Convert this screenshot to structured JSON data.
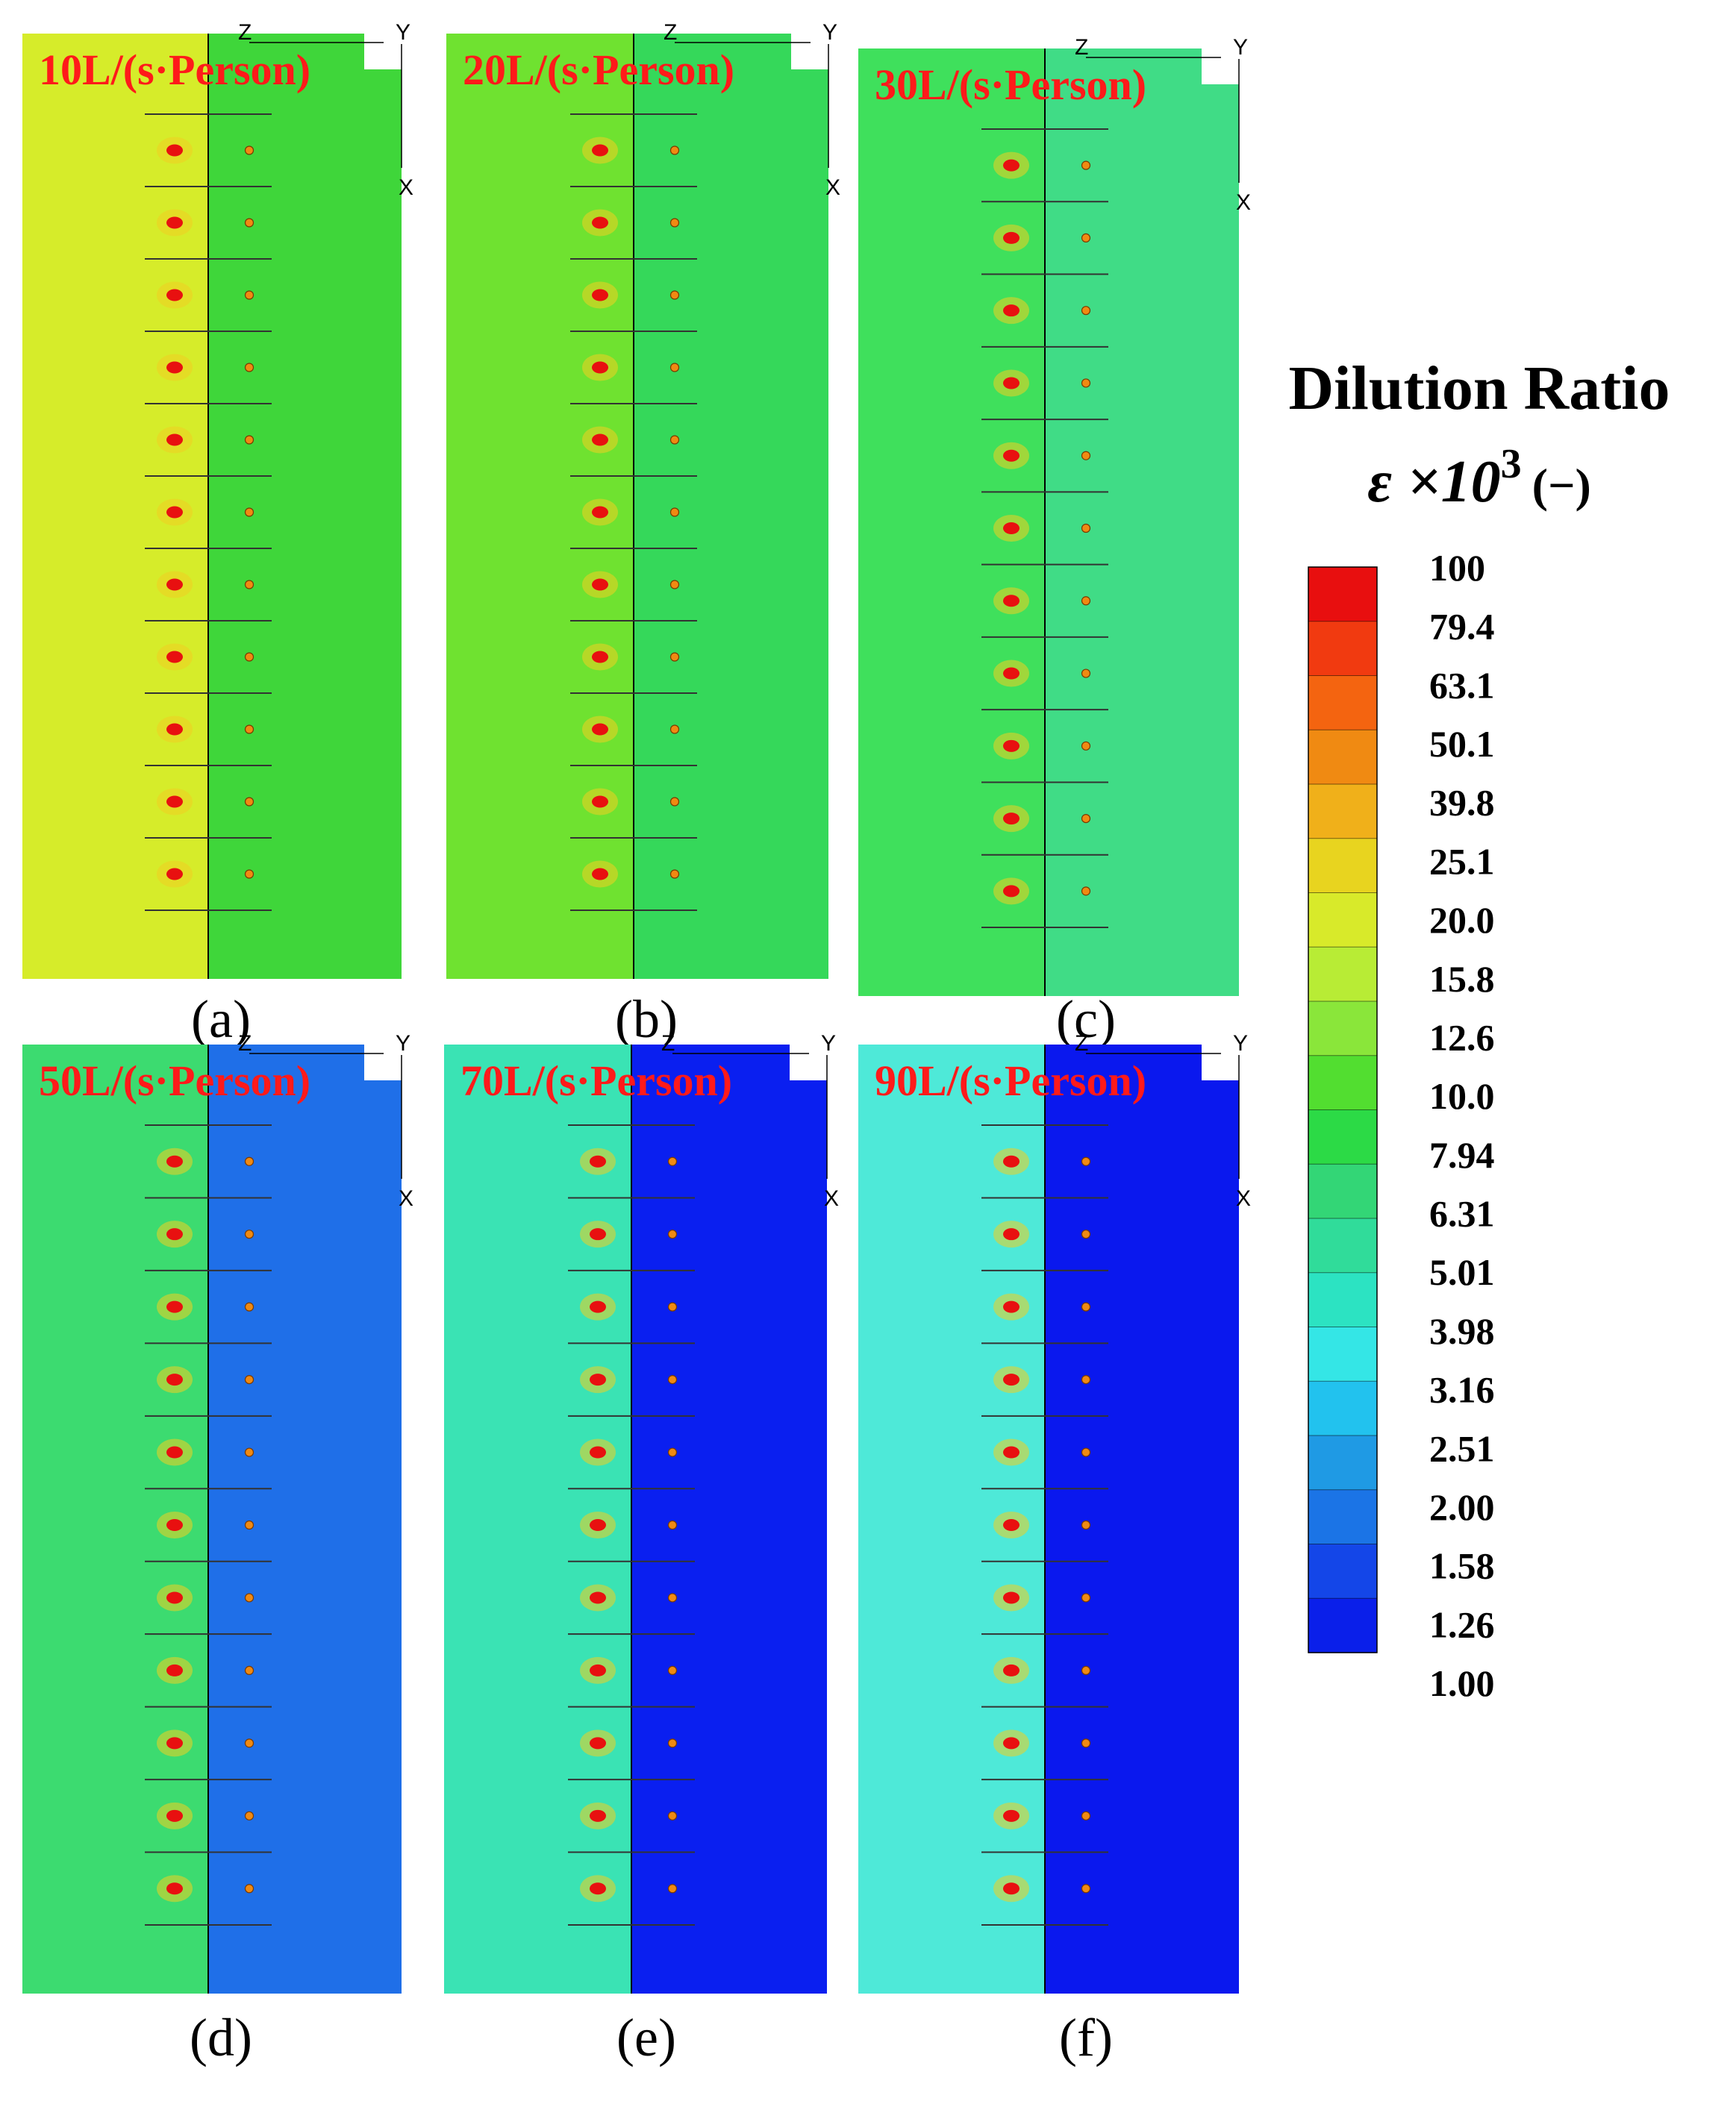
{
  "colors": {
    "label_red": "#ff1a1a",
    "axis_black": "#000000"
  },
  "panels": [
    {
      "id": "a",
      "label": "(a)",
      "rate_label": "10L/(s·Person)",
      "near_bg": "#d6ec2a",
      "far_bg": "#3fd63a",
      "axes": {
        "z": "Z",
        "y": "Y",
        "x": "X"
      }
    },
    {
      "id": "b",
      "label": "(b)",
      "rate_label": "20L/(s·Person)",
      "near_bg": "#6fe230",
      "far_bg": "#35d85a",
      "axes": {
        "z": "Z",
        "y": "Y",
        "x": "X"
      }
    },
    {
      "id": "c",
      "label": "(c)",
      "rate_label": "30L/(s·Person)",
      "near_bg": "#3fe05c",
      "far_bg": "#40dc86",
      "axes": {
        "z": "Z",
        "y": "Y",
        "x": "X"
      }
    },
    {
      "id": "d",
      "label": "(d)",
      "rate_label": "50L/(s·Person)",
      "near_bg": "#3cdb70",
      "far_bg": "#1f6fe8",
      "axes": {
        "z": "Z",
        "y": "Y",
        "x": "X"
      }
    },
    {
      "id": "e",
      "label": "(e)",
      "rate_label": "70L/(s·Person)",
      "near_bg": "#3ae3b4",
      "far_bg": "#0a1ff0",
      "axes": {
        "z": "Z",
        "y": "Y",
        "x": "X"
      }
    },
    {
      "id": "f",
      "label": "(f)",
      "rate_label": "90L/(s·Person)",
      "near_bg": "#4ee9d8",
      "far_bg": "#0a18ee",
      "axes": {
        "z": "Z",
        "y": "Y",
        "x": "X"
      }
    }
  ],
  "chart_data": {
    "type": "heatmap",
    "title": "Dilution Ratio",
    "colorbar_label": "ε ×10",
    "colorbar_exponent": "3",
    "colorbar_unit": "(−)",
    "colorbar_ticks": [
      "100",
      "79.4",
      "63.1",
      "50.1",
      "39.8",
      "25.1",
      "20.0",
      "15.8",
      "12.6",
      "10.0",
      "7.94",
      "6.31",
      "5.01",
      "3.98",
      "3.16",
      "2.51",
      "2.00",
      "1.58",
      "1.26",
      "1.00"
    ],
    "colorbar_colors": [
      "#e80f0f",
      "#f13a10",
      "#f46410",
      "#f08a12",
      "#f0b01a",
      "#e8d41f",
      "#d8ea2a",
      "#b8ec35",
      "#8ae63a",
      "#52de30",
      "#2cda46",
      "#33d676",
      "#30dc9a",
      "#2ce3c2",
      "#34e6e6",
      "#22c2ee",
      "#1f9ae4",
      "#1b74e6",
      "#1446e8",
      "#0a1fea"
    ],
    "panels": [
      "10L/(s·Person)",
      "20L/(s·Person)",
      "30L/(s·Person)",
      "50L/(s·Person)",
      "70L/(s·Person)",
      "90L/(s·Person)"
    ],
    "rows_per_panel": 11,
    "sources_per_row": 2
  }
}
